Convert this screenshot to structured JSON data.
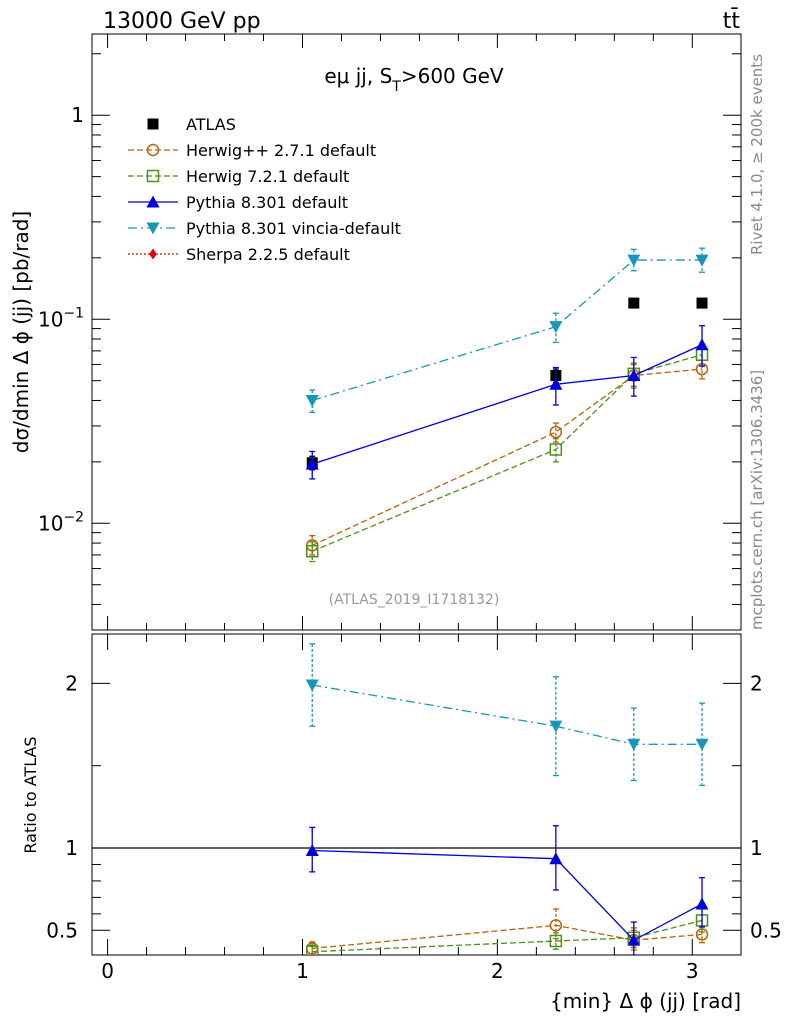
{
  "header": {
    "energy_label": "13000 GeV pp",
    "process_label": "tt̄"
  },
  "side_labels": {
    "rivet": "Rivet 4.1.0, ≥ 200k events",
    "mcplots": "mcplots.cern.ch [arXiv:1306.3436]"
  },
  "analysis_id": "(ATLAS_2019_I1718132)",
  "chart_data": [
    {
      "type": "line",
      "panel": "main",
      "title_parts": {
        "base": "eμ jj, S",
        "sub": "T",
        "tail": ">600 GeV"
      },
      "ylabel": "dσ/dmin Δ ϕ (jj) [pb/rad]",
      "yscale": "log",
      "ylim": [
        0.003,
        2.5
      ],
      "xlim": [
        -0.08,
        3.25
      ],
      "yticks": [
        {
          "value": 0.01,
          "base": "10",
          "exp": "−2"
        },
        {
          "value": 0.1,
          "base": "10",
          "exp": "−1"
        },
        {
          "value": 1,
          "base": "1",
          "exp": ""
        }
      ],
      "legend_position": "top-left",
      "series": [
        {
          "name": "ATLAS",
          "color": "#000000",
          "marker": "square",
          "dash": "none",
          "x": [
            1.05,
            2.3,
            2.7,
            3.05
          ],
          "y": [
            0.0198,
            0.053,
            0.12,
            0.12
          ],
          "err_lo": [
            0.0015,
            0.004,
            0.003,
            0.003
          ],
          "err_hi": [
            0.0015,
            0.004,
            0.003,
            0.003
          ]
        },
        {
          "name": "Herwig++ 2.7.1 default",
          "color": "#b8610f",
          "marker": "circle-open",
          "dash": "6,3",
          "x": [
            1.05,
            2.3,
            2.7,
            3.05
          ],
          "y": [
            0.0078,
            0.028,
            0.053,
            0.057
          ],
          "err_lo": [
            0.0008,
            0.003,
            0.007,
            0.006
          ],
          "err_hi": [
            0.0009,
            0.003,
            0.007,
            0.006
          ]
        },
        {
          "name": "Herwig 7.2.1 default",
          "color": "#4d8f1a",
          "marker": "square-open",
          "dash": "6,3",
          "x": [
            1.05,
            2.3,
            2.7,
            3.05
          ],
          "y": [
            0.0073,
            0.023,
            0.054,
            0.067
          ],
          "err_lo": [
            0.0008,
            0.003,
            0.007,
            0.008
          ],
          "err_hi": [
            0.0008,
            0.003,
            0.007,
            0.008
          ]
        },
        {
          "name": "Pythia 8.301 default",
          "color": "#0000dd",
          "marker": "triangle-up",
          "dash": "none",
          "x": [
            1.05,
            2.3,
            2.7,
            3.05
          ],
          "y": [
            0.0195,
            0.048,
            0.053,
            0.075
          ],
          "err_lo": [
            0.003,
            0.01,
            0.011,
            0.016
          ],
          "err_hi": [
            0.003,
            0.01,
            0.012,
            0.018
          ]
        },
        {
          "name": "Pythia 8.301 vincia-default",
          "color": "#1896b8",
          "marker": "triangle-down",
          "dash": "9,4,2,4",
          "x": [
            1.05,
            2.3,
            2.7,
            3.05
          ],
          "y": [
            0.04,
            0.092,
            0.195,
            0.195
          ],
          "err_lo": [
            0.005,
            0.015,
            0.022,
            0.025
          ],
          "err_hi": [
            0.005,
            0.015,
            0.025,
            0.028
          ]
        },
        {
          "name": "Sherpa 2.2.5 default",
          "color": "#dd0000",
          "marker": "diamond",
          "dash": "2,2",
          "x": [],
          "y": [],
          "err_lo": [],
          "err_hi": []
        }
      ]
    },
    {
      "type": "line",
      "panel": "ratio",
      "ylabel": "Ratio to ATLAS",
      "xlabel": "{min} Δ ϕ (jj) [rad]",
      "ylim": [
        0.35,
        2.3
      ],
      "xlim": [
        -0.08,
        3.25
      ],
      "yticks": [
        0.5,
        1,
        2
      ],
      "xticks": [
        0,
        1,
        2,
        3
      ],
      "reference_line": 1,
      "series": [
        {
          "name": "Herwig++ 2.7.1 default",
          "color": "#b8610f",
          "marker": "circle-open",
          "dash": "6,3",
          "x": [
            1.05,
            2.3,
            2.7,
            3.05
          ],
          "y": [
            0.39,
            0.53,
            0.44,
            0.475
          ],
          "err_lo": [
            0.04,
            0.08,
            0.06,
            0.05
          ],
          "err_hi": [
            0.04,
            0.1,
            0.06,
            0.05
          ]
        },
        {
          "name": "Herwig 7.2.1 default",
          "color": "#4d8f1a",
          "marker": "square-open",
          "dash": "6,3",
          "x": [
            1.05,
            2.3,
            2.7,
            3.05
          ],
          "y": [
            0.37,
            0.435,
            0.455,
            0.56
          ],
          "err_lo": [
            0.04,
            0.05,
            0.06,
            0.07
          ],
          "err_hi": [
            0.04,
            0.05,
            0.06,
            0.07
          ]
        },
        {
          "name": "Pythia 8.301 default",
          "color": "#0000dd",
          "marker": "triangle-up",
          "dash": "none",
          "x": [
            1.05,
            2.3,
            2.7,
            3.05
          ],
          "y": [
            0.985,
            0.935,
            0.44,
            0.66
          ],
          "err_lo": [
            0.13,
            0.19,
            0.09,
            0.14
          ],
          "err_hi": [
            0.14,
            0.2,
            0.11,
            0.16
          ]
        },
        {
          "name": "Pythia 8.301 vincia-default",
          "color": "#1896b8",
          "marker": "triangle-down",
          "dash": "9,4,2,4",
          "x": [
            1.05,
            2.3,
            2.7,
            3.05
          ],
          "y": [
            1.99,
            1.74,
            1.63,
            1.63
          ],
          "err_lo": [
            0.25,
            0.3,
            0.22,
            0.25
          ],
          "err_hi": [
            0.25,
            0.3,
            0.22,
            0.25
          ]
        }
      ]
    }
  ]
}
